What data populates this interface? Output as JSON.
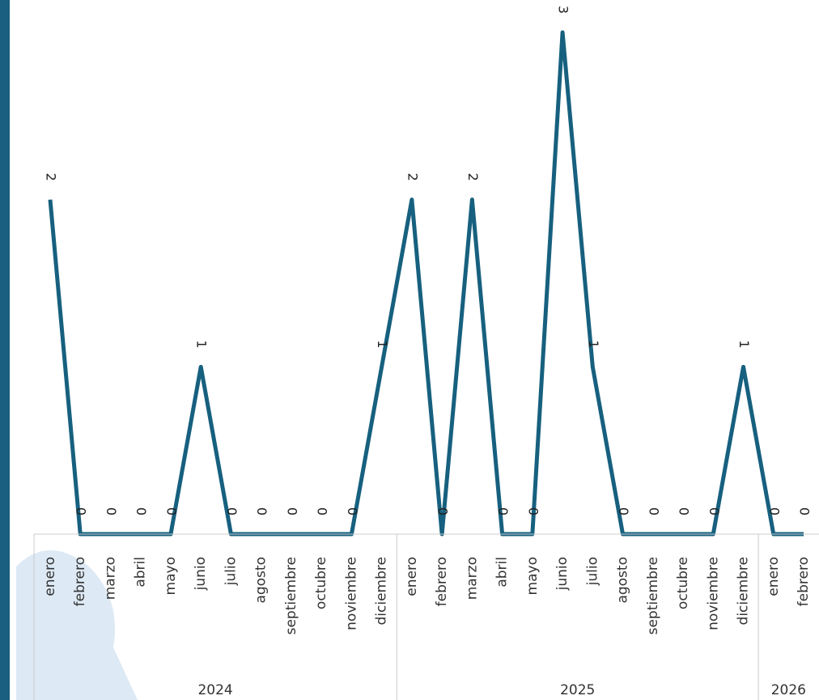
{
  "chart_data": {
    "type": "line",
    "color": "#17607f",
    "ylim": [
      0,
      3
    ],
    "groups": [
      {
        "name": "2024",
        "categories": [
          "enero",
          "febrero",
          "marzo",
          "abril",
          "mayo",
          "junio",
          "julio",
          "agosto",
          "septiembre",
          "octubre",
          "noviembre",
          "diciembre"
        ],
        "values": [
          2,
          0,
          0,
          0,
          0,
          1,
          0,
          0,
          0,
          0,
          0,
          1
        ]
      },
      {
        "name": "2025",
        "categories": [
          "enero",
          "febrero",
          "marzo",
          "abril",
          "mayo",
          "junio",
          "julio",
          "agosto",
          "septiembre",
          "octubre",
          "noviembre",
          "diciembre"
        ],
        "values": [
          2,
          0,
          2,
          0,
          0,
          3,
          1,
          0,
          0,
          0,
          0,
          1
        ]
      },
      {
        "name": "2026",
        "categories": [
          "enero",
          "febrero"
        ],
        "values": [
          0,
          0
        ]
      }
    ]
  }
}
